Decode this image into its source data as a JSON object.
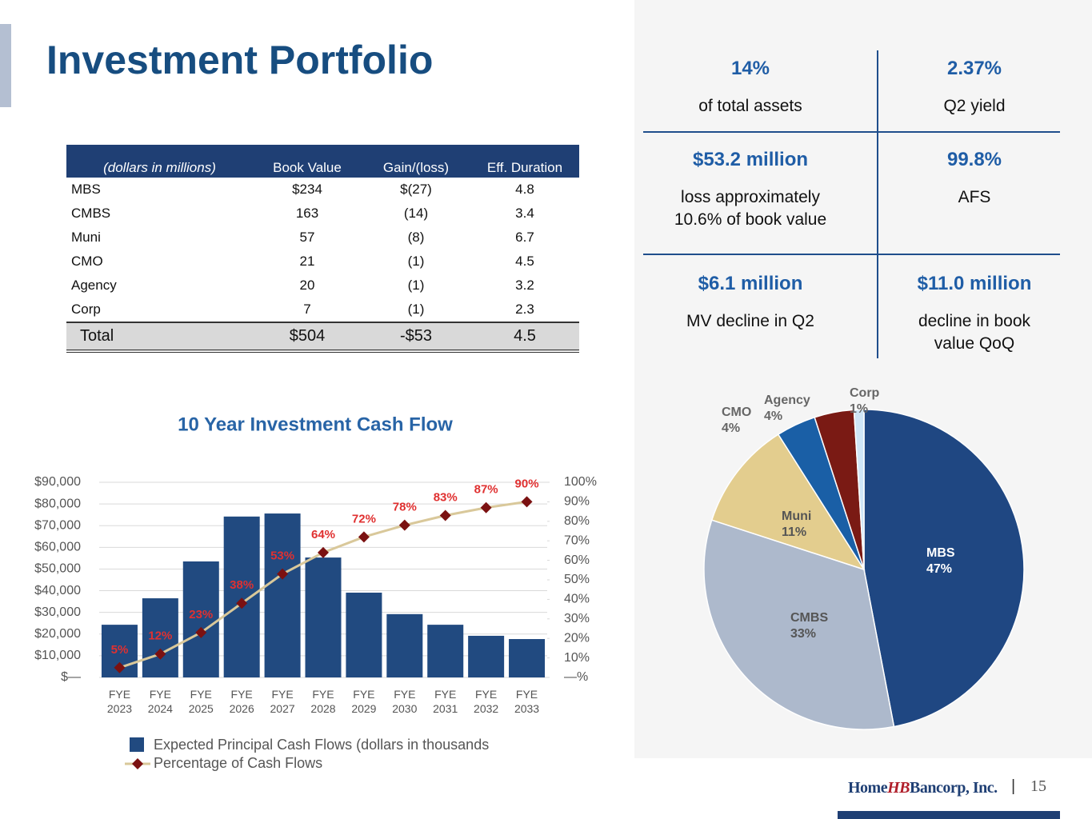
{
  "title": "Investment Portfolio",
  "table": {
    "header": [
      "(dollars in millions)",
      "Book Value",
      "Gain/(loss)",
      "Eff. Duration"
    ],
    "rows": [
      [
        "MBS",
        "$234",
        "$(27)",
        "4.8"
      ],
      [
        "CMBS",
        "163",
        "(14)",
        "3.4"
      ],
      [
        "Muni",
        "57",
        "(8)",
        "6.7"
      ],
      [
        "CMO",
        "21",
        "(1)",
        "4.5"
      ],
      [
        "Agency",
        "20",
        "(1)",
        "3.2"
      ],
      [
        "Corp",
        "7",
        "(1)",
        "2.3"
      ]
    ],
    "total": [
      "Total",
      "$504",
      "-$53",
      "4.5"
    ]
  },
  "kpis": [
    {
      "value": "14%",
      "label": [
        "of total assets"
      ]
    },
    {
      "value": "2.37%",
      "label": [
        "Q2 yield"
      ]
    },
    {
      "value": "$53.2 million",
      "label": [
        "loss approximately",
        "10.6% of book value"
      ]
    },
    {
      "value": "99.8%",
      "label": [
        "AFS"
      ]
    },
    {
      "value": "$6.1 million",
      "label": [
        "MV decline in Q2"
      ]
    },
    {
      "value": "$11.0 million",
      "label": [
        "decline in book",
        "value QoQ"
      ]
    }
  ],
  "chart_data": [
    {
      "type": "bar_line",
      "title": "10 Year Investment Cash Flow",
      "categories": [
        "FYE 2023",
        "FYE 2024",
        "FYE 2025",
        "FYE 2026",
        "FYE 2027",
        "FYE 2028",
        "FYE 2029",
        "FYE 2030",
        "FYE 2031",
        "FYE 2032",
        "FYE 2033"
      ],
      "series": [
        {
          "name": "Expected Principal Cash Flows (dollars in thousands",
          "color": "#214a80",
          "values": [
            24300,
            36500,
            53500,
            74200,
            75600,
            55300,
            39100,
            29200,
            24300,
            19200,
            17700
          ]
        },
        {
          "name": "Percentage of Cash Flows",
          "color": "#d9c89a",
          "marker_color": "#7b1111",
          "label_color": "#e03030",
          "axis": "y2",
          "values": [
            5,
            12,
            23,
            38,
            53,
            64,
            72,
            78,
            83,
            87,
            90
          ],
          "value_labels": [
            "5%",
            "12%",
            "23%",
            "38%",
            "53%",
            "64%",
            "72%",
            "78%",
            "83%",
            "87%",
            "90%"
          ]
        }
      ],
      "ylim": [
        0,
        90000
      ],
      "yticks": [
        {
          "value": 0,
          "label": "$—"
        },
        {
          "value": 10000,
          "label": "$10,000"
        },
        {
          "value": 20000,
          "label": "$20,000"
        },
        {
          "value": 30000,
          "label": "$30,000"
        },
        {
          "value": 40000,
          "label": "$40,000"
        },
        {
          "value": 50000,
          "label": "$50,000"
        },
        {
          "value": 60000,
          "label": "$60,000"
        },
        {
          "value": 70000,
          "label": "$70,000"
        },
        {
          "value": 80000,
          "label": "$80,000"
        },
        {
          "value": 90000,
          "label": "$90,000"
        }
      ],
      "y2lim": [
        0,
        100
      ],
      "y2ticks": [
        {
          "value": 0,
          "label": "—%"
        },
        {
          "value": 10,
          "label": "10%"
        },
        {
          "value": 20,
          "label": "20%"
        },
        {
          "value": 30,
          "label": "30%"
        },
        {
          "value": 40,
          "label": "40%"
        },
        {
          "value": 50,
          "label": "50%"
        },
        {
          "value": 60,
          "label": "60%"
        },
        {
          "value": 70,
          "label": "70%"
        },
        {
          "value": 80,
          "label": "80%"
        },
        {
          "value": 90,
          "label": "90%"
        },
        {
          "value": 100,
          "label": "100%"
        }
      ],
      "grid": true,
      "legend": "bottom"
    },
    {
      "type": "pie",
      "categories": [
        "MBS",
        "CMBS",
        "Muni",
        "CMO",
        "Agency",
        "Corp"
      ],
      "values": [
        47,
        33,
        11,
        4,
        4,
        1
      ],
      "value_labels": [
        "47%",
        "33%",
        "11%",
        "4%",
        "4%",
        "1%"
      ],
      "colors": [
        "#1f4782",
        "#adb9cc",
        "#e3cd8e",
        "#1a5fa6",
        "#7a1a14",
        "#cfe6f7"
      ]
    }
  ],
  "footer": {
    "logo": [
      "Home",
      "HB",
      "Bancorp, Inc."
    ],
    "page": "15"
  }
}
